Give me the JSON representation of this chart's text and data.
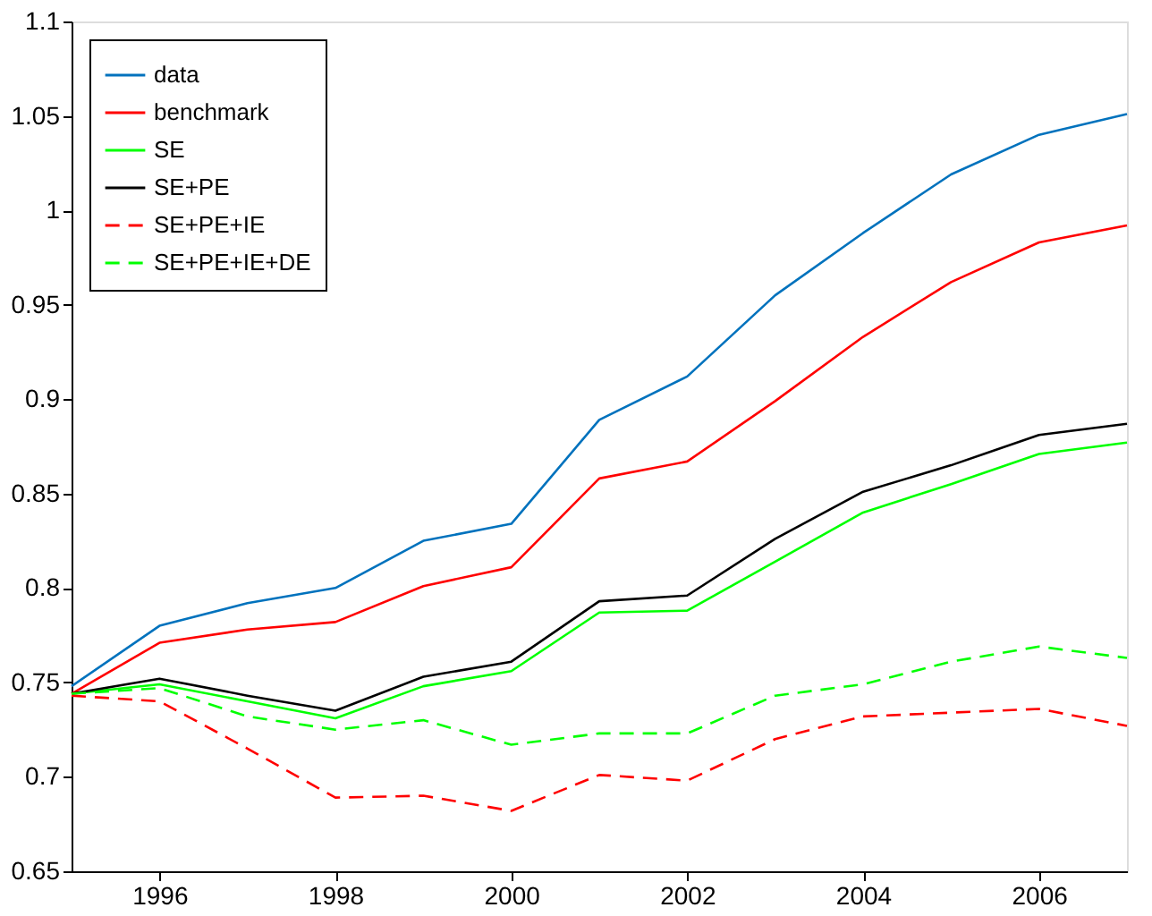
{
  "chart_data": {
    "type": "line",
    "x": [
      1995,
      1996,
      1997,
      1998,
      1999,
      2000,
      2001,
      2002,
      2003,
      2004,
      2005,
      2006,
      2007
    ],
    "series": [
      {
        "name": "data",
        "color": "#0072bd",
        "line_style": "solid",
        "values": [
          0.748,
          0.78,
          0.792,
          0.8,
          0.825,
          0.834,
          0.889,
          0.912,
          0.955,
          0.988,
          1.019,
          1.04,
          1.051
        ]
      },
      {
        "name": "benchmark",
        "color": "#ff0000",
        "line_style": "solid",
        "values": [
          0.744,
          0.771,
          0.778,
          0.782,
          0.801,
          0.811,
          0.858,
          0.867,
          0.899,
          0.933,
          0.962,
          0.983,
          0.992
        ]
      },
      {
        "name": "SE",
        "color": "#00ff00",
        "line_style": "solid",
        "values": [
          0.744,
          0.749,
          0.74,
          0.731,
          0.748,
          0.756,
          0.787,
          0.788,
          0.814,
          0.84,
          0.855,
          0.871,
          0.877
        ]
      },
      {
        "name": "SE+PE",
        "color": "#000000",
        "line_style": "solid",
        "values": [
          0.744,
          0.752,
          0.743,
          0.735,
          0.753,
          0.761,
          0.793,
          0.796,
          0.826,
          0.851,
          0.865,
          0.881,
          0.887
        ]
      },
      {
        "name": "SE+PE+IE",
        "color": "#ff0000",
        "line_style": "dashed",
        "values": [
          0.743,
          0.74,
          0.715,
          0.689,
          0.69,
          0.682,
          0.701,
          0.698,
          0.72,
          0.732,
          0.734,
          0.736,
          0.727
        ]
      },
      {
        "name": "SE+PE+IE+DE",
        "color": "#00ff00",
        "line_style": "dashed",
        "values": [
          0.744,
          0.747,
          0.732,
          0.725,
          0.73,
          0.717,
          0.723,
          0.723,
          0.743,
          0.749,
          0.761,
          0.769,
          0.763
        ]
      }
    ],
    "xlim": [
      1995,
      2007
    ],
    "xticks": [
      1996,
      1998,
      2000,
      2002,
      2004,
      2006
    ],
    "ylim": [
      0.65,
      1.1
    ],
    "yticks": [
      0.65,
      0.7,
      0.75,
      0.8,
      0.85,
      0.9,
      0.95,
      1,
      1.05,
      1.1
    ],
    "grid": false,
    "legend": "top left",
    "marker": "none"
  }
}
